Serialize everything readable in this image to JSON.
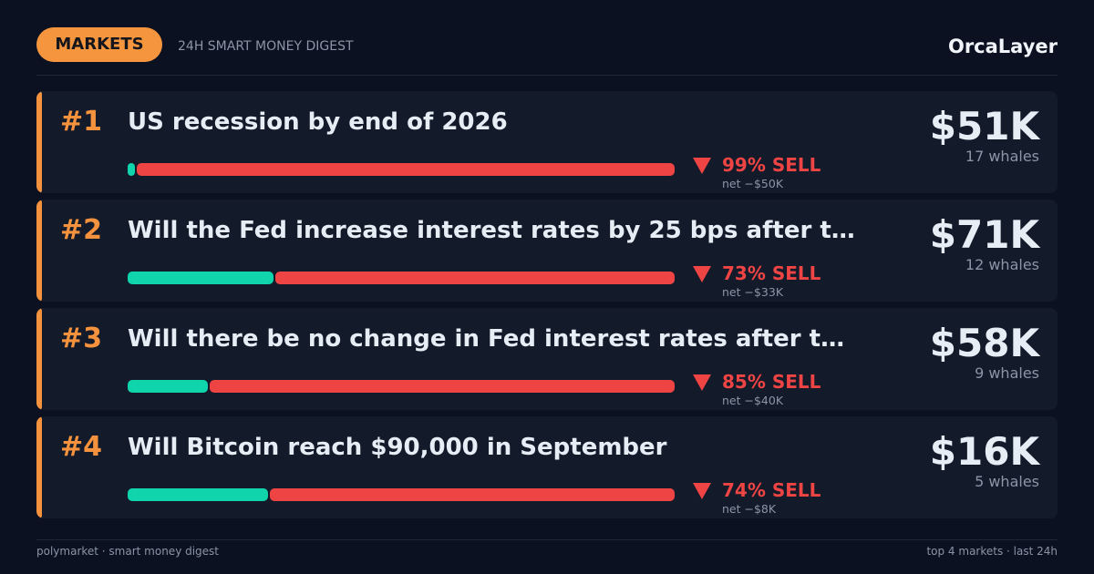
{
  "header": {
    "badge": "MARKETS",
    "subtitle": "24H SMART MONEY DIGEST",
    "brand": "OrcaLayer"
  },
  "markets": [
    {
      "rank": "#1",
      "title": "US recession by end of 2026",
      "sell": {
        "value": 99,
        "label": "99% SELL"
      },
      "net": "net −$50K",
      "amount": "$51K",
      "whales": "17 whales"
    },
    {
      "rank": "#2",
      "title": "Will the Fed increase interest rates by 25 bps after t…",
      "sell": {
        "value": 73,
        "label": "73% SELL"
      },
      "net": "net −$33K",
      "amount": "$71K",
      "whales": "12 whales"
    },
    {
      "rank": "#3",
      "title": "Will there be no change in Fed interest rates after t…",
      "sell": {
        "value": 85,
        "label": "85% SELL"
      },
      "net": "net −$40K",
      "amount": "$58K",
      "whales": "9 whales"
    },
    {
      "rank": "#4",
      "title": "Will Bitcoin reach $90,000 in September",
      "sell": {
        "value": 74,
        "label": "74% SELL"
      },
      "net": "net −$8K",
      "amount": "$16K",
      "whales": "5 whales"
    }
  ],
  "footer": {
    "left": "polymarket · smart money digest",
    "right": "top 4 markets · last 24h"
  }
}
